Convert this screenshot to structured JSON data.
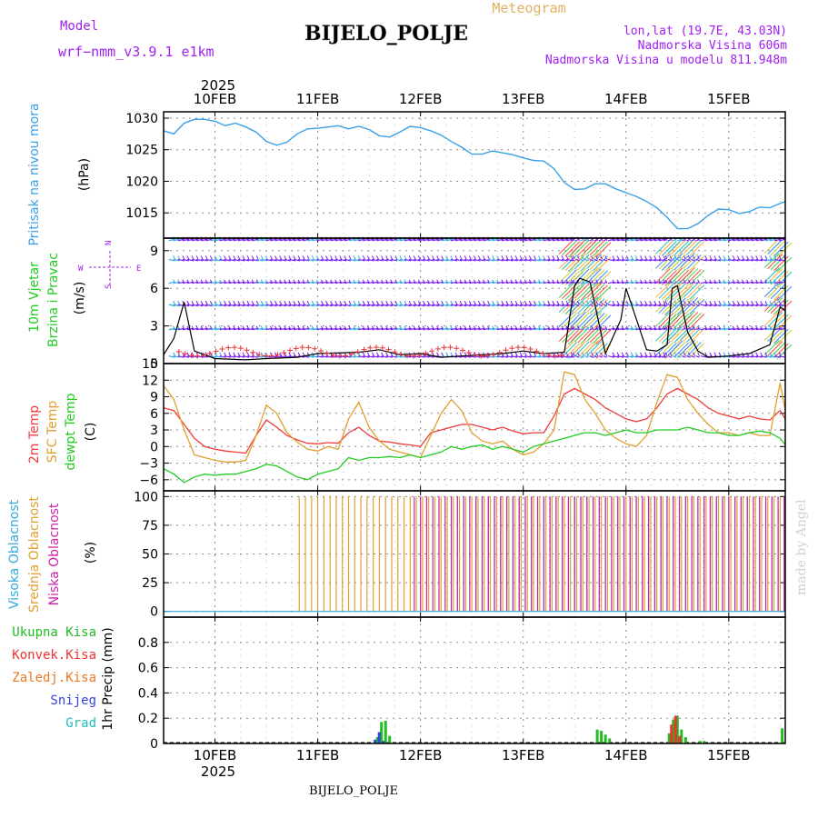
{
  "header": {
    "model_label": "Model",
    "model_name": "wrf−nmm_v3.9.1 e1km",
    "title": "BIJELO_POLJE",
    "subtitle": "Meteogram",
    "lonlat": "lon,lat (19.7E, 43.03N)",
    "altitude": "Nadmorska Visina 606m",
    "model_altitude": "Nadmorska Visina u modelu 811.948m",
    "footer_station": "BIJELO_POLJE",
    "watermark": "made by Angel"
  },
  "colors": {
    "pressure": "#3aa0e8",
    "temp2m": "#ee3c3c",
    "sfc": "#e0a030",
    "dew": "#22cc22",
    "high_cloud": "#33aadd",
    "mid_cloud": "#e0a030",
    "low_cloud": "#cc22aa",
    "total_precip": "#22bb22",
    "conv_precip": "#ee3333",
    "frozen_precip": "#ee7722",
    "snow": "#3344dd",
    "hail": "#22bbbb",
    "wind_barb": "#7a22ee",
    "purple_text": "#a020f0"
  },
  "time_axis": {
    "year": "2025",
    "days": [
      "10FEB",
      "11FEB",
      "12FEB",
      "13FEB",
      "14FEB",
      "15FEB"
    ],
    "start_offset_days": -0.5,
    "end_offset_days": 5.55
  },
  "chart_data": [
    {
      "type": "line",
      "panel": "pressure",
      "ylabel_lines": [
        "Pritisak na nivou mora",
        "(hPa)"
      ],
      "ylim": [
        1011,
        1031
      ],
      "yticks": [
        1015,
        1020,
        1025,
        1030
      ],
      "grid": true,
      "series": [
        {
          "x": [
            -0.5,
            -0.4,
            -0.3,
            -0.2,
            -0.1,
            0.0,
            0.1,
            0.2,
            0.3,
            0.4,
            0.5,
            0.6,
            0.7,
            0.8,
            0.9,
            1.0,
            1.1,
            1.2,
            1.3,
            1.4,
            1.5,
            1.6,
            1.7,
            1.8,
            1.9,
            2.0,
            2.1,
            2.2,
            2.3,
            2.4,
            2.5,
            2.6,
            2.7,
            2.8,
            2.9,
            3.0,
            3.1,
            3.2,
            3.3,
            3.4,
            3.5,
            3.6,
            3.7,
            3.8,
            3.9,
            4.0,
            4.1,
            4.2,
            4.3,
            4.4,
            4.5,
            4.6,
            4.7,
            4.8,
            4.9,
            5.0,
            5.1,
            5.2,
            5.3,
            5.4,
            5.5,
            5.55
          ],
          "values": [
            1028.0,
            1027.5,
            1029.2,
            1029.8,
            1029.8,
            1029.5,
            1028.8,
            1029.2,
            1028.6,
            1027.8,
            1026.3,
            1025.7,
            1026.2,
            1027.5,
            1028.3,
            1028.4,
            1028.6,
            1028.8,
            1028.3,
            1028.7,
            1028.2,
            1027.2,
            1027.0,
            1027.8,
            1028.7,
            1028.5,
            1028.0,
            1027.3,
            1026.3,
            1025.4,
            1024.3,
            1024.3,
            1024.8,
            1024.5,
            1024.2,
            1023.7,
            1023.3,
            1023.2,
            1022.0,
            1019.8,
            1018.7,
            1018.8,
            1019.6,
            1019.6,
            1018.8,
            1018.2,
            1017.6,
            1016.8,
            1015.8,
            1014.3,
            1012.5,
            1012.5,
            1013.3,
            1014.6,
            1015.6,
            1015.5,
            1014.9,
            1015.2,
            1015.9,
            1015.8,
            1016.5,
            1016.8
          ]
        }
      ]
    },
    {
      "type": "line",
      "panel": "wind",
      "ylabel_lines": [
        "10m Vjetar",
        "Brzina i Pravac",
        "(m/s)"
      ],
      "compass": {
        "n": "N",
        "s": "S",
        "w": "W",
        "e": "E"
      },
      "ylim": [
        0,
        10
      ],
      "yticks": [
        0,
        3,
        6,
        9
      ],
      "grid": true,
      "barb_levels": [
        0.6,
        2.7,
        4.7,
        6.4,
        8.3,
        9.8
      ],
      "series": [
        {
          "name": "wind speed",
          "x": [
            -0.5,
            -0.4,
            -0.3,
            -0.2,
            0.0,
            0.3,
            0.5,
            0.8,
            1.0,
            1.4,
            1.6,
            1.8,
            2.0,
            2.2,
            2.4,
            2.6,
            2.8,
            3.0,
            3.2,
            3.4,
            3.5,
            3.55,
            3.65,
            3.8,
            3.95,
            4.0,
            4.2,
            4.3,
            4.4,
            4.45,
            4.5,
            4.6,
            4.7,
            4.8,
            5.0,
            5.2,
            5.4,
            5.5,
            5.55
          ],
          "values": [
            0.7,
            2.0,
            4.9,
            1.0,
            0.4,
            0.3,
            0.4,
            0.5,
            0.8,
            0.9,
            1.1,
            0.7,
            0.8,
            0.5,
            0.6,
            0.7,
            0.8,
            1.0,
            0.8,
            0.9,
            6.2,
            6.8,
            6.5,
            0.8,
            3.5,
            6.0,
            1.1,
            1.0,
            1.5,
            6.0,
            6.2,
            2.5,
            1.0,
            0.5,
            0.6,
            0.8,
            1.5,
            4.5,
            4.2
          ]
        }
      ]
    },
    {
      "type": "line",
      "panel": "temperature",
      "ylabel_lines": [
        "2m Temp",
        "SFC Temp",
        "dewpt Temp",
        "(C)"
      ],
      "ylim": [
        -8,
        15
      ],
      "yticks": [
        -6,
        -3,
        0,
        3,
        6,
        9,
        12,
        15
      ],
      "grid": true,
      "x": [
        -0.5,
        -0.4,
        -0.3,
        -0.2,
        -0.1,
        0.0,
        0.1,
        0.2,
        0.3,
        0.4,
        0.5,
        0.6,
        0.7,
        0.8,
        0.9,
        1.0,
        1.1,
        1.2,
        1.3,
        1.4,
        1.5,
        1.6,
        1.7,
        1.8,
        1.9,
        2.0,
        2.1,
        2.2,
        2.3,
        2.4,
        2.5,
        2.6,
        2.7,
        2.8,
        2.9,
        3.0,
        3.1,
        3.2,
        3.3,
        3.4,
        3.5,
        3.6,
        3.7,
        3.8,
        3.9,
        4.0,
        4.1,
        4.2,
        4.3,
        4.4,
        4.5,
        4.6,
        4.7,
        4.8,
        4.9,
        5.0,
        5.1,
        5.2,
        5.3,
        5.4,
        5.5,
        5.55
      ],
      "series": [
        {
          "name": "2m Temp",
          "values": [
            7.0,
            6.5,
            4.0,
            1.5,
            0.0,
            -0.5,
            -0.8,
            -1.0,
            -1.2,
            2.0,
            4.8,
            3.5,
            2.0,
            1.2,
            0.6,
            0.5,
            0.7,
            0.6,
            2.5,
            3.5,
            2.0,
            1.0,
            0.8,
            0.5,
            0.3,
            0.0,
            2.5,
            3.0,
            3.5,
            4.0,
            4.0,
            3.5,
            3.0,
            3.5,
            2.8,
            2.3,
            2.5,
            2.5,
            5.5,
            9.5,
            10.5,
            9.5,
            8.5,
            7.0,
            6.0,
            5.0,
            4.5,
            5.0,
            7.0,
            9.5,
            10.5,
            9.5,
            8.5,
            7.0,
            6.0,
            5.5,
            5.0,
            5.5,
            5.0,
            4.8,
            6.5,
            5.0
          ]
        },
        {
          "name": "SFC Temp",
          "values": [
            11.0,
            8.5,
            3.0,
            -1.5,
            -2.0,
            -2.5,
            -2.8,
            -2.8,
            -2.5,
            2.0,
            7.5,
            6.0,
            2.5,
            0.8,
            -0.5,
            -0.8,
            0.0,
            -0.5,
            5.0,
            8.0,
            3.5,
            1.0,
            -0.5,
            -1.0,
            -1.5,
            -2.0,
            2.0,
            6.0,
            8.5,
            6.5,
            2.5,
            1.0,
            0.5,
            1.0,
            -0.5,
            -1.5,
            -1.0,
            0.5,
            3.0,
            13.5,
            13.0,
            8.5,
            6.0,
            3.0,
            1.5,
            0.5,
            0.0,
            2.0,
            8.0,
            13.0,
            12.5,
            8.5,
            6.0,
            4.0,
            2.5,
            2.5,
            2.0,
            2.5,
            2.0,
            2.0,
            11.5,
            6.5
          ]
        },
        {
          "name": "dewpt Temp",
          "values": [
            -4.0,
            -5.0,
            -6.5,
            -5.5,
            -5.0,
            -5.2,
            -5.0,
            -5.0,
            -4.5,
            -4.0,
            -3.2,
            -3.5,
            -4.5,
            -5.5,
            -6.0,
            -5.0,
            -4.5,
            -4.0,
            -2.0,
            -2.5,
            -2.0,
            -2.0,
            -1.8,
            -2.0,
            -1.5,
            -2.0,
            -1.5,
            -1.0,
            0.0,
            -0.5,
            0.0,
            0.3,
            -0.5,
            0.0,
            -0.5,
            -1.0,
            0.0,
            0.5,
            1.0,
            1.5,
            2.0,
            2.5,
            2.5,
            2.0,
            2.5,
            3.0,
            2.5,
            2.5,
            3.0,
            3.0,
            3.0,
            3.5,
            3.0,
            2.5,
            2.5,
            2.0,
            2.0,
            2.5,
            2.8,
            2.5,
            1.5,
            0.3
          ]
        }
      ]
    },
    {
      "type": "bar",
      "panel": "cloud",
      "ylabel_lines": [
        "Visoka Oblacnost",
        "Srednja Oblacnost",
        "Niska Oblacnost",
        "(%)"
      ],
      "ylim": [
        -5,
        105
      ],
      "yticks": [
        0,
        25,
        50,
        75,
        100
      ],
      "grid": true,
      "series": [
        {
          "name": "Visoka Oblacnost",
          "x_range": [
            2.3,
            5.55
          ],
          "step": 0.06,
          "values": [
            100,
            100,
            100,
            100,
            100,
            100,
            100,
            100,
            100,
            100,
            100,
            100,
            100,
            100,
            100,
            100,
            100,
            100,
            100,
            100,
            100,
            100,
            100,
            100,
            100,
            100,
            100,
            100,
            100,
            100,
            100,
            100,
            100,
            100,
            100,
            100,
            100,
            100,
            100,
            100,
            100,
            100,
            100,
            100,
            100,
            100,
            100,
            100,
            100,
            30,
            100,
            100,
            100,
            90,
            100
          ]
        },
        {
          "name": "Srednja Oblacnost",
          "x_range": [
            0.8,
            5.55
          ],
          "step": 0.06,
          "values": [
            100,
            100,
            100,
            100,
            100,
            100,
            100,
            100,
            100,
            100,
            100,
            100,
            100,
            100,
            100,
            100,
            100,
            100,
            100,
            100,
            100,
            100,
            100,
            100,
            100,
            100,
            100,
            100,
            100,
            100,
            100,
            100,
            100,
            100,
            100,
            100,
            100,
            100,
            100,
            100,
            100,
            100,
            100,
            100,
            100,
            100,
            100,
            100,
            100,
            100,
            100,
            100,
            100,
            100,
            100,
            100,
            100,
            100,
            100,
            100,
            100,
            100,
            100,
            100,
            100,
            100,
            100,
            100,
            100,
            100,
            100,
            100,
            100,
            100,
            100,
            100,
            100,
            100,
            100,
            100
          ]
        },
        {
          "name": "Niska Oblacnost",
          "x_range": [
            1.9,
            5.55
          ],
          "step": 0.06,
          "values": [
            100,
            100,
            100,
            100,
            100,
            100,
            100,
            100,
            100,
            100,
            100,
            100,
            100,
            100,
            100,
            100,
            100,
            100,
            100,
            100,
            100,
            100,
            100,
            100,
            100,
            100,
            100,
            100,
            100,
            100,
            100,
            100,
            100,
            100,
            100,
            100,
            100,
            100,
            100,
            100,
            100,
            100,
            100,
            100,
            100,
            100,
            100,
            100,
            100,
            100,
            100,
            100,
            100,
            100,
            100,
            100,
            100,
            100,
            100,
            100,
            100,
            100
          ]
        }
      ]
    },
    {
      "type": "bar",
      "panel": "precip",
      "ylabel_lines": [
        "1hr Precip (mm)"
      ],
      "legend": [
        "Ukupna Kisa",
        "Konvek.Kisa",
        "Zaledj.Kisa",
        "Snijeg",
        "Grad"
      ],
      "ylim": [
        0,
        1.0
      ],
      "yticks": [
        0,
        0.2,
        0.4,
        0.6,
        0.8
      ],
      "grid": true,
      "bars": [
        {
          "x": 1.58,
          "total": 0.05,
          "snow": 0.03
        },
        {
          "x": 1.62,
          "total": 0.17,
          "snow": 0.09
        },
        {
          "x": 1.66,
          "total": 0.18,
          "snow": 0.02
        },
        {
          "x": 1.7,
          "total": 0.06
        },
        {
          "x": 3.72,
          "total": 0.11
        },
        {
          "x": 3.76,
          "total": 0.1
        },
        {
          "x": 3.8,
          "total": 0.07
        },
        {
          "x": 3.84,
          "total": 0.04
        },
        {
          "x": 4.42,
          "total": 0.08
        },
        {
          "x": 4.46,
          "total": 0.19,
          "conv": 0.15
        },
        {
          "x": 4.5,
          "total": 0.22,
          "conv": 0.22
        },
        {
          "x": 4.54,
          "total": 0.11,
          "conv": 0.06
        },
        {
          "x": 4.58,
          "total": 0.05
        },
        {
          "x": 4.72,
          "total": 0.02
        },
        {
          "x": 4.76,
          "total": 0.02
        },
        {
          "x": 5.52,
          "total": 0.12
        }
      ]
    }
  ]
}
